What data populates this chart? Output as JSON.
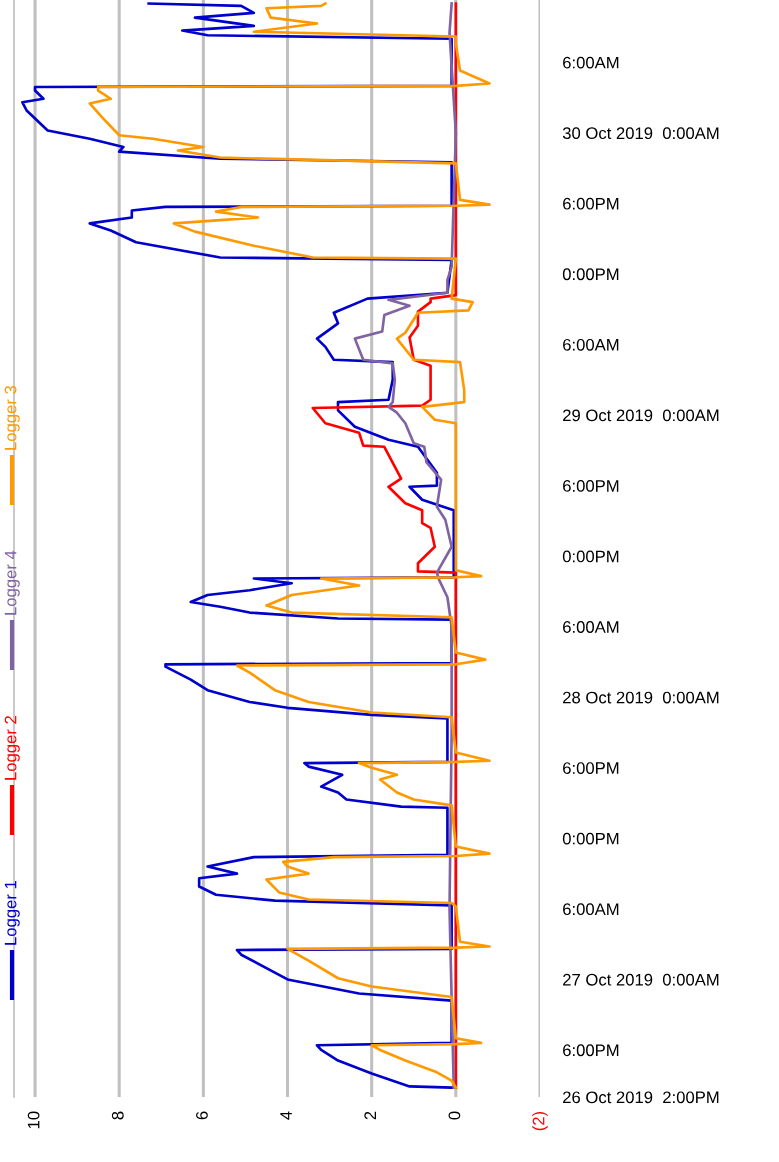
{
  "chart_data": {
    "type": "line",
    "orientation": "horizontal",
    "legend": "left",
    "grid": "x",
    "line_style": "solid",
    "marker": "none",
    "xlim": [
      10.5,
      -2
    ],
    "xticks": [
      10,
      8,
      6,
      4,
      2,
      0,
      {
        "value": -2,
        "label": "(2)"
      }
    ],
    "ylim": [
      "2019-10-26T14:00",
      "2019-10-30T11:18"
    ],
    "yticks": [
      {
        "value": "2019-10-26T14:00",
        "label": "26 Oct 2019  2:00PM"
      },
      {
        "value": "2019-10-26T18:00",
        "label": "6:00PM"
      },
      {
        "value": "2019-10-27T00:00",
        "label": "27 Oct 2019  0:00AM"
      },
      {
        "value": "2019-10-27T06:00",
        "label": "6:00AM"
      },
      {
        "value": "2019-10-27T12:00",
        "label": "0:00PM"
      },
      {
        "value": "2019-10-27T18:00",
        "label": "6:00PM"
      },
      {
        "value": "2019-10-28T00:00",
        "label": "28 Oct 2019  0:00AM"
      },
      {
        "value": "2019-10-28T06:00",
        "label": "6:00AM"
      },
      {
        "value": "2019-10-28T12:00",
        "label": "0:00PM"
      },
      {
        "value": "2019-10-28T18:00",
        "label": "6:00PM"
      },
      {
        "value": "2019-10-29T00:00",
        "label": "29 Oct 2019  0:00AM"
      },
      {
        "value": "2019-10-29T06:00",
        "label": "6:00AM"
      },
      {
        "value": "2019-10-29T12:00",
        "label": "0:00PM"
      },
      {
        "value": "2019-10-29T18:00",
        "label": "6:00PM"
      },
      {
        "value": "2019-10-30T00:00",
        "label": "30 Oct 2019  0:00AM"
      },
      {
        "value": "2019-10-30T06:00",
        "label": "6:00AM"
      }
    ],
    "series": [
      {
        "name": "Logger 1",
        "color": "#0000cc",
        "x": [
          "2019-10-26T14:48",
          "2019-10-26T14:54",
          "2019-10-26T16:00",
          "2019-10-26T17:06",
          "2019-10-26T18:00",
          "2019-10-26T18:24",
          "2019-10-26T18:36",
          "2019-10-26T22:12",
          "2019-10-26T22:48",
          "2019-10-27T00:00",
          "2019-10-27T02:06",
          "2019-10-27T02:30",
          "2019-10-27T02:36",
          "2019-10-27T06:18",
          "2019-10-27T06:42",
          "2019-10-27T07:12",
          "2019-10-27T07:54",
          "2019-10-27T08:36",
          "2019-10-27T09:00",
          "2019-10-27T09:36",
          "2019-10-27T10:24",
          "2019-10-27T10:36",
          "2019-10-27T14:36",
          "2019-10-27T14:42",
          "2019-10-27T15:18",
          "2019-10-27T15:54",
          "2019-10-27T16:24",
          "2019-10-27T17:24",
          "2019-10-27T18:06",
          "2019-10-27T18:24",
          "2019-10-27T18:30",
          "2019-10-27T22:12",
          "2019-10-27T22:30",
          "2019-10-27T23:06",
          "2019-10-27T23:36",
          "2019-10-28T00:36",
          "2019-10-28T01:30",
          "2019-10-28T02:36",
          "2019-10-28T02:48",
          "2019-10-28T02:54",
          "2019-10-28T06:36",
          "2019-10-28T06:42",
          "2019-10-28T07:12",
          "2019-10-28T07:42",
          "2019-10-28T08:06",
          "2019-10-28T08:42",
          "2019-10-28T09:06",
          "2019-10-28T09:42",
          "2019-10-28T10:06",
          "2019-10-28T10:12",
          "2019-10-28T15:54",
          "2019-10-28T16:48",
          "2019-10-28T17:54",
          "2019-10-28T18:00",
          "2019-10-28T19:06",
          "2019-10-28T21:18",
          "2019-10-28T21:54",
          "2019-10-28T23:00",
          "2019-10-29T00:24",
          "2019-10-29T01:06",
          "2019-10-29T01:18",
          "2019-10-29T03:00",
          "2019-10-29T04:30",
          "2019-10-29T04:42",
          "2019-10-29T05:48",
          "2019-10-29T06:30",
          "2019-10-29T07:48",
          "2019-10-29T08:42",
          "2019-10-29T09:54",
          "2019-10-29T10:24",
          "2019-10-29T13:12",
          "2019-10-29T13:24",
          "2019-10-29T14:42",
          "2019-10-29T15:42",
          "2019-10-29T16:18",
          "2019-10-29T16:48",
          "2019-10-29T17:24",
          "2019-10-29T17:42",
          "2019-10-29T17:48",
          "2019-10-29T21:30",
          "2019-10-29T21:48",
          "2019-10-29T22:24",
          "2019-10-29T22:48",
          "2019-10-29T23:30",
          "2019-10-30T00:12",
          "2019-10-30T01:54",
          "2019-10-30T02:36",
          "2019-10-30T02:54",
          "2019-10-30T03:36",
          "2019-10-30T03:54",
          "2019-10-30T04:00",
          "2019-10-30T08:00",
          "2019-10-30T08:18",
          "2019-10-30T08:42",
          "2019-10-30T09:06",
          "2019-10-30T09:48",
          "2019-10-30T10:12",
          "2019-10-30T10:48",
          "2019-10-30T11:00"
        ],
        "values": [
          0.1,
          1.1,
          2.0,
          2.8,
          3.2,
          3.3,
          0.1,
          0.1,
          2.3,
          4.0,
          5.1,
          5.2,
          0.1,
          0.1,
          4.3,
          5.7,
          6.1,
          6.1,
          5.2,
          5.9,
          4.8,
          0.2,
          0.2,
          1.3,
          2.6,
          2.8,
          3.2,
          2.7,
          3.5,
          3.6,
          0.2,
          0.2,
          2.0,
          4.0,
          4.9,
          5.9,
          6.3,
          6.9,
          6.9,
          0.1,
          0.1,
          2.8,
          4.9,
          5.6,
          6.3,
          5.9,
          4.9,
          3.9,
          4.8,
          0.05,
          0.05,
          0.8,
          1.1,
          0.45,
          0.45,
          0.9,
          1.6,
          2.4,
          2.8,
          2.8,
          1.6,
          1.5,
          1.5,
          2.9,
          3.1,
          3.3,
          2.8,
          2.9,
          2.1,
          0.2,
          0.1,
          5.6,
          7.6,
          8.2,
          8.7,
          7.7,
          7.7,
          6.9,
          0.1,
          0.1,
          5.6,
          8.0,
          7.9,
          8.7,
          9.7,
          10.2,
          10.3,
          9.8,
          10.0,
          10.0,
          0.1,
          0.1,
          5.9,
          6.5,
          4.8,
          6.2,
          4.8,
          5.1,
          7.3
        ]
      },
      {
        "name": "Logger 2",
        "color": "#ff0000",
        "x": [
          "2019-10-26T14:48",
          "2019-10-28T10:36",
          "2019-10-28T10:42",
          "2019-10-28T11:24",
          "2019-10-28T12:48",
          "2019-10-28T14:24",
          "2019-10-28T14:48",
          "2019-10-28T15:54",
          "2019-10-28T16:30",
          "2019-10-28T17:54",
          "2019-10-28T18:36",
          "2019-10-28T21:18",
          "2019-10-28T21:24",
          "2019-10-28T22:30",
          "2019-10-28T23:18",
          "2019-10-29T00:36",
          "2019-10-29T00:48",
          "2019-10-29T01:18",
          "2019-10-29T04:12",
          "2019-10-29T04:42",
          "2019-10-29T06:36",
          "2019-10-29T07:36",
          "2019-10-29T08:48",
          "2019-10-29T09:36",
          "2019-10-29T09:54",
          "2019-10-29T10:12",
          "2019-10-30T11:00"
        ],
        "values": [
          0,
          0,
          0.9,
          0.9,
          0.5,
          0.6,
          0.8,
          0.8,
          1.2,
          1.6,
          1.3,
          1.7,
          2.2,
          2.3,
          3.1,
          3.4,
          0.8,
          0.6,
          0.6,
          1.0,
          1.1,
          0.9,
          0.9,
          0.6,
          0.6,
          0,
          0
        ]
      },
      {
        "name": "Logger 4",
        "color": "#8064a2",
        "x": [
          "2019-10-26T14:48",
          "2019-10-27T06:00",
          "2019-10-27T21:00",
          "2019-10-28T06:00",
          "2019-10-28T08:30",
          "2019-10-28T10:00",
          "2019-10-28T10:36",
          "2019-10-28T12:48",
          "2019-10-28T15:06",
          "2019-10-28T16:12",
          "2019-10-28T18:30",
          "2019-10-28T20:00",
          "2019-10-28T21:18",
          "2019-10-28T21:36",
          "2019-10-28T23:18",
          "2019-10-29T00:12",
          "2019-10-29T00:42",
          "2019-10-29T01:06",
          "2019-10-29T03:00",
          "2019-10-29T04:24",
          "2019-10-29T04:42",
          "2019-10-29T06:30",
          "2019-10-29T07:06",
          "2019-10-29T08:30",
          "2019-10-29T09:18",
          "2019-10-29T09:48",
          "2019-10-29T10:24",
          "2019-10-29T11:30",
          "2019-10-29T12:36",
          "2019-10-30T00:00",
          "2019-10-30T08:30",
          "2019-10-30T11:00"
        ],
        "values": [
          0.05,
          0.15,
          0.1,
          0.1,
          0.2,
          0.4,
          0.45,
          0.1,
          0.25,
          0.45,
          0.35,
          0.7,
          0.75,
          1.0,
          1.2,
          1.4,
          1.6,
          1.5,
          1.45,
          1.5,
          2.2,
          2.4,
          1.75,
          1.7,
          1.1,
          1.6,
          0.2,
          0.2,
          0.1,
          0.0,
          0.15,
          0.1
        ]
      },
      {
        "name": "Logger 3",
        "color": "#ff9900",
        "x": [
          "2019-10-26T14:48",
          "2019-10-26T15:24",
          "2019-10-26T16:06",
          "2019-10-26T17:06",
          "2019-10-26T18:00",
          "2019-10-26T18:24",
          "2019-10-26T18:30",
          "2019-10-26T18:36",
          "2019-10-26T19:00",
          "2019-10-26T22:30",
          "2019-10-26T23:24",
          "2019-10-27T00:06",
          "2019-10-27T01:36",
          "2019-10-27T02:36",
          "2019-10-27T02:42",
          "2019-10-27T02:48",
          "2019-10-27T03:12",
          "2019-10-27T06:12",
          "2019-10-27T06:30",
          "2019-10-27T06:48",
          "2019-10-27T07:24",
          "2019-10-27T08:30",
          "2019-10-27T09:00",
          "2019-10-27T09:36",
          "2019-10-27T10:00",
          "2019-10-27T10:24",
          "2019-10-27T10:30",
          "2019-10-27T10:42",
          "2019-10-27T11:18",
          "2019-10-27T14:48",
          "2019-10-27T15:18",
          "2019-10-27T15:54",
          "2019-10-27T17:00",
          "2019-10-27T17:24",
          "2019-10-27T18:00",
          "2019-10-27T18:24",
          "2019-10-27T18:30",
          "2019-10-27T18:36",
          "2019-10-27T19:18",
          "2019-10-27T22:18",
          "2019-10-27T22:42",
          "2019-10-27T23:36",
          "2019-10-28T00:36",
          "2019-10-28T02:06",
          "2019-10-28T02:42",
          "2019-10-28T02:48",
          "2019-10-28T03:12",
          "2019-10-28T03:48",
          "2019-10-28T06:48",
          "2019-10-28T07:12",
          "2019-10-28T07:48",
          "2019-10-28T08:42",
          "2019-10-28T09:30",
          "2019-10-28T10:06",
          "2019-10-28T10:12",
          "2019-10-28T10:18",
          "2019-10-28T10:48",
          "2019-10-28T23:18",
          "2019-10-28T23:36",
          "2019-10-29T00:42",
          "2019-10-29T01:06",
          "2019-10-29T02:06",
          "2019-10-29T04:30",
          "2019-10-29T04:42",
          "2019-10-29T06:30",
          "2019-10-29T07:00",
          "2019-10-29T08:42",
          "2019-10-29T08:54",
          "2019-10-29T09:36",
          "2019-10-29T09:54",
          "2019-10-29T13:18",
          "2019-10-29T13:24",
          "2019-10-29T14:24",
          "2019-10-29T15:36",
          "2019-10-29T16:18",
          "2019-10-29T16:48",
          "2019-10-29T17:18",
          "2019-10-29T17:42",
          "2019-10-29T17:48",
          "2019-10-29T17:54",
          "2019-10-29T18:18",
          "2019-10-29T21:24",
          "2019-10-29T21:54",
          "2019-10-29T22:30",
          "2019-10-29T22:48",
          "2019-10-29T23:30",
          "2019-10-29T23:48",
          "2019-10-30T01:18",
          "2019-10-30T02:30",
          "2019-10-30T02:54",
          "2019-10-30T03:36",
          "2019-10-30T03:54",
          "2019-10-30T04:00",
          "2019-10-30T04:12",
          "2019-10-30T05:18",
          "2019-10-30T07:36",
          "2019-10-30T08:12",
          "2019-10-30T08:36",
          "2019-10-30T09:18",
          "2019-10-30T09:48",
          "2019-10-30T10:36",
          "2019-10-30T10:48",
          "2019-10-30T11:00"
        ],
        "values": [
          0.0,
          0.1,
          0.45,
          1.2,
          1.8,
          2.0,
          0.0,
          -0.6,
          0.0,
          0.1,
          2.0,
          2.8,
          3.5,
          4.0,
          0.0,
          -0.8,
          -0.1,
          0.0,
          0.1,
          3.5,
          4.2,
          4.5,
          3.5,
          4.0,
          4.1,
          2.9,
          0.0,
          -0.8,
          0.0,
          0.1,
          1.0,
          1.4,
          1.8,
          1.4,
          2.0,
          2.3,
          0.0,
          -0.8,
          0.0,
          0.1,
          2.0,
          3.5,
          4.3,
          4.9,
          5.2,
          0.0,
          -0.7,
          0.0,
          0.1,
          3.9,
          4.5,
          3.9,
          2.3,
          3.2,
          0.0,
          -0.6,
          0.0,
          0.0,
          0.5,
          0.8,
          -0.2,
          -0.2,
          -0.1,
          1.0,
          1.4,
          1.2,
          0.9,
          -0.3,
          -0.4,
          0.1,
          0.0,
          3.4,
          4.8,
          6.2,
          6.7,
          4.7,
          5.7,
          5.1,
          0.0,
          -0.8,
          -0.1,
          0.0,
          5.6,
          6.6,
          6.0,
          7.2,
          8.0,
          8.4,
          8.7,
          8.2,
          8.5,
          8.5,
          0.0,
          -0.8,
          -0.1,
          0.0,
          0.0,
          4.8,
          3.3,
          4.4,
          4.5,
          3.2,
          3.1
        ]
      }
    ]
  }
}
